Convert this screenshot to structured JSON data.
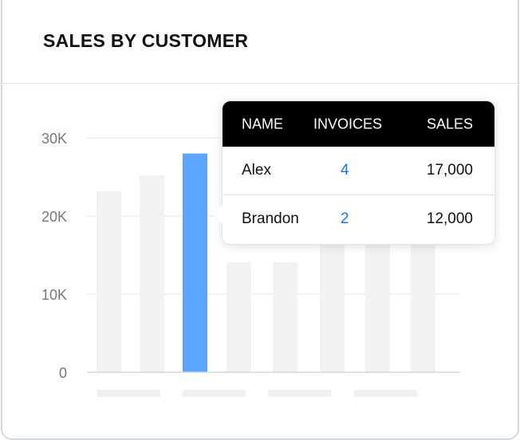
{
  "header": {
    "title": "SALES BY CUSTOMER"
  },
  "chart_data": {
    "type": "bar",
    "title": "SALES BY CUSTOMER",
    "yticks": [
      "0",
      "10K",
      "20K",
      "30K"
    ],
    "ylim": [
      0,
      30000
    ],
    "values": [
      23200,
      25200,
      28000,
      14100,
      14100,
      17000,
      17000,
      17000
    ],
    "highlighted_index": 2,
    "colors": {
      "bar": "#f2f2f2",
      "highlight": "#5ba5ff"
    },
    "grid": true
  },
  "tooltip": {
    "columns": [
      "NAME",
      "INVOICES",
      "SALES"
    ],
    "rows": [
      {
        "name": "Alex",
        "invoices": "4",
        "sales": "17,000"
      },
      {
        "name": "Brandon",
        "invoices": "2",
        "sales": "12,000"
      }
    ]
  }
}
